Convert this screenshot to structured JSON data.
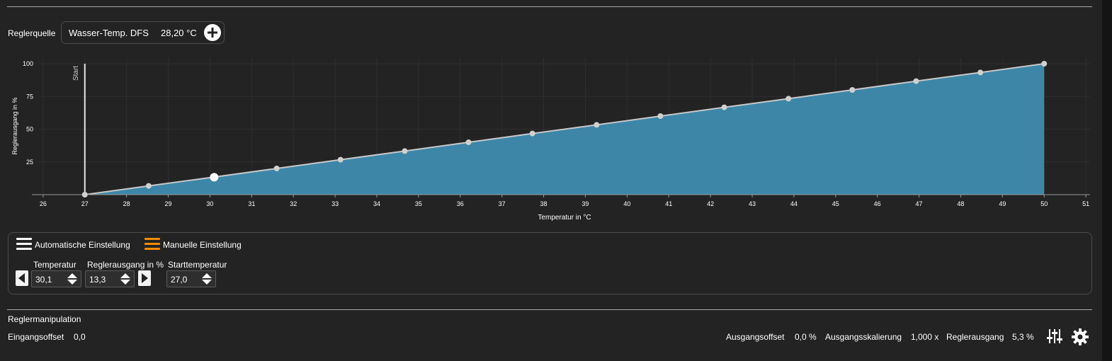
{
  "source": {
    "label": "Reglerquelle",
    "name": "Wasser-Temp. DFS",
    "value": "28,20 °C"
  },
  "chart_data": {
    "type": "area",
    "xlabel": "Temperatur in °C",
    "ylabel": "Reglerausgang in %",
    "xlim": [
      25.9,
      51.1
    ],
    "ylim": [
      0,
      100
    ],
    "x_ticks": [
      26,
      27,
      28,
      29,
      30,
      31,
      32,
      33,
      34,
      35,
      36,
      37,
      38,
      39,
      40,
      41,
      42,
      43,
      44,
      45,
      46,
      47,
      48,
      49,
      50,
      51
    ],
    "y_ticks": [
      25,
      50,
      75,
      100
    ],
    "grid": true,
    "start_line": {
      "x": 27,
      "label": "Start"
    },
    "points_x": [
      27,
      28.53,
      30.07,
      31.6,
      33.13,
      34.67,
      36.2,
      37.73,
      39.27,
      40.8,
      42.33,
      43.87,
      45.4,
      46.93,
      48.47,
      50
    ],
    "points_y": [
      0,
      6.7,
      13.3,
      20,
      26.7,
      33.3,
      40,
      46.7,
      53.3,
      60,
      66.7,
      73.3,
      80,
      86.7,
      93.3,
      100
    ],
    "selected": {
      "x": 30.1,
      "y": 13.3
    },
    "fill_color": "#3d86a8",
    "line_color": "#c8c8c8"
  },
  "modes": {
    "auto_label": "Automatische Einstellung",
    "manual_label": "Manuelle Einstellung",
    "auto_color": "#ffffff",
    "manual_color": "#f28c00"
  },
  "fields": {
    "temperature_label": "Temperatur",
    "temperature_value": "30,1",
    "output_label": "Reglerausgang in %",
    "output_value": "13,3",
    "start_temp_label": "Starttemperatur",
    "start_temp_value": "27,0"
  },
  "manipulation": {
    "title": "Reglermanipulation",
    "input_offset_label": "Eingangsoffset",
    "input_offset_value": "0,0",
    "output_offset_label": "Ausgangsoffset",
    "output_offset_value": "0,0 %",
    "output_scale_label": "Ausgangsskalierung",
    "output_scale_value": "1,000 x",
    "controller_output_label": "Reglerausgang",
    "controller_output_value": "5,3 %"
  }
}
